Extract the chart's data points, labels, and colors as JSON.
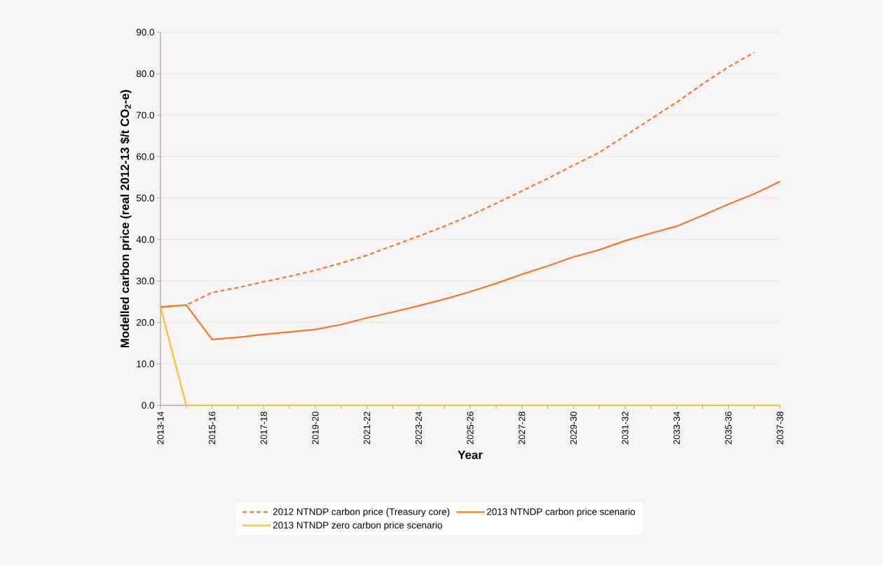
{
  "chart_data": {
    "type": "line",
    "xlabel": "Year",
    "ylabel": "Modelled carbon price (real 2012-13 $/t CO$_{2}$-e)",
    "categories": [
      "2013-14",
      null,
      "2015-16",
      null,
      "2017-18",
      null,
      "2019-20",
      null,
      "2021-22",
      null,
      "2023-24",
      null,
      "2025-26",
      null,
      "2027-28",
      null,
      "2029-30",
      null,
      "2031-32",
      null,
      "2033-34",
      null,
      "2035-36",
      null,
      "2037-38"
    ],
    "series": [
      {
        "name": "2012 NTNDP carbon price (Treasury core)",
        "color": "#f07a28",
        "line_style": "dashed",
        "values": [
          23.7,
          24.2,
          27.2,
          28.4,
          29.8,
          31.1,
          32.6,
          34.3,
          36.2,
          38.5,
          40.8,
          43.2,
          45.8,
          48.7,
          51.7,
          54.7,
          57.9,
          61.0,
          65.0,
          69.1,
          73.1,
          77.5,
          81.6,
          85.1,
          null
        ]
      },
      {
        "name": "2013 NTNDP carbon price scenario",
        "color": "#f07a28",
        "line_style": "solid",
        "values": [
          23.7,
          24.2,
          15.9,
          16.4,
          17.1,
          17.7,
          18.3,
          19.5,
          21.1,
          22.5,
          24.0,
          25.6,
          27.4,
          29.4,
          31.6,
          33.6,
          35.8,
          37.5,
          39.7,
          41.5,
          43.2,
          45.8,
          48.5,
          51.0,
          54.0
        ]
      },
      {
        "name": "2013 NTNDP zero carbon price scenario",
        "color": "#fdbf2d",
        "line_style": "solid",
        "values": [
          23.7,
          0,
          0,
          0,
          0,
          0,
          0,
          0,
          0,
          0,
          0,
          0,
          0,
          0,
          0,
          0,
          0,
          0,
          0,
          0,
          0,
          0,
          0,
          0,
          0
        ]
      }
    ],
    "ylim": [
      0,
      90
    ],
    "yticks": [
      {
        "value": 0,
        "label": "0.0"
      },
      {
        "value": 10,
        "label": "10.0"
      },
      {
        "value": 20,
        "label": "20.0"
      },
      {
        "value": 30,
        "label": "30.0"
      },
      {
        "value": 40,
        "label": "40.0"
      },
      {
        "value": 50,
        "label": "50.0"
      },
      {
        "value": 60,
        "label": "60.0"
      },
      {
        "value": 70,
        "label": "70.0"
      },
      {
        "value": 80,
        "label": "80.0"
      },
      {
        "value": 90,
        "label": "90.0"
      }
    ],
    "grid": "y",
    "legend": "bottom"
  }
}
